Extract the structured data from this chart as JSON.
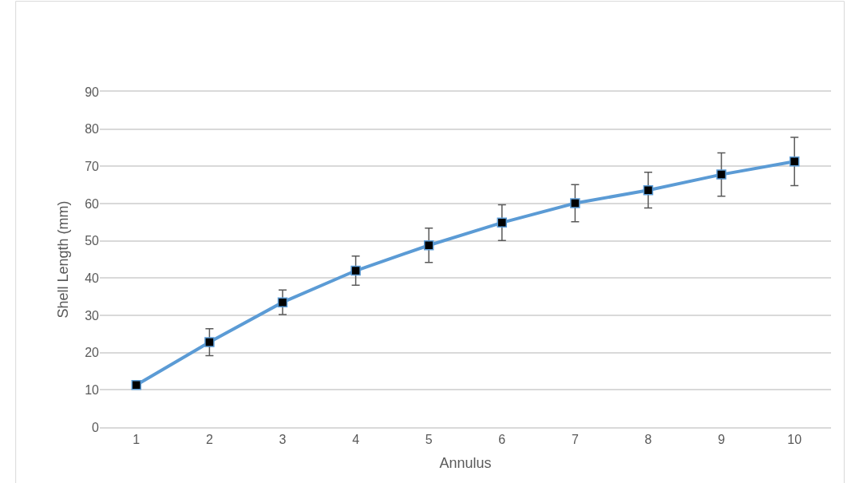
{
  "chart_data": {
    "type": "line",
    "xlabel": "Annulus",
    "ylabel": "Shell Length (mm)",
    "categories": [
      "1",
      "2",
      "3",
      "4",
      "5",
      "6",
      "7",
      "8",
      "9",
      "10"
    ],
    "series": [
      {
        "color": "#5b9bd5",
        "values": [
          11.3,
          22.8,
          33.5,
          42.0,
          48.8,
          54.9,
          60.1,
          63.6,
          67.8,
          71.3
        ],
        "errors": [
          null,
          3.6,
          3.3,
          3.9,
          4.6,
          4.8,
          5.0,
          4.8,
          5.8,
          6.5
        ]
      }
    ],
    "ylim": [
      0,
      90
    ],
    "yticks": [
      0,
      10,
      20,
      30,
      40,
      50,
      60,
      70,
      80,
      90
    ],
    "grid": "y",
    "marker": "square",
    "line_style": "solid"
  }
}
